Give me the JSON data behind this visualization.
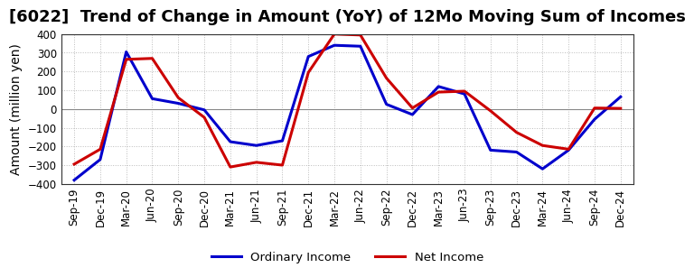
{
  "title": "[6022]  Trend of Change in Amount (YoY) of 12Mo Moving Sum of Incomes",
  "ylabel": "Amount (million yen)",
  "ylim": [
    -400,
    400
  ],
  "yticks": [
    -400,
    -300,
    -200,
    -100,
    0,
    100,
    200,
    300,
    400
  ],
  "x_labels": [
    "Sep-19",
    "Dec-19",
    "Mar-20",
    "Jun-20",
    "Sep-20",
    "Dec-20",
    "Mar-21",
    "Jun-21",
    "Sep-21",
    "Dec-21",
    "Mar-22",
    "Jun-22",
    "Sep-22",
    "Dec-22",
    "Mar-23",
    "Jun-23",
    "Sep-23",
    "Dec-23",
    "Mar-24",
    "Jun-24",
    "Sep-24",
    "Dec-24"
  ],
  "ordinary_income": [
    -380,
    -270,
    305,
    55,
    30,
    -5,
    -175,
    -195,
    -170,
    280,
    340,
    335,
    25,
    -30,
    120,
    80,
    -220,
    -230,
    -320,
    -220,
    -55,
    65
  ],
  "net_income": [
    -295,
    -215,
    265,
    270,
    60,
    -45,
    -310,
    -285,
    -300,
    195,
    400,
    395,
    165,
    5,
    90,
    95,
    -10,
    -125,
    -195,
    -215,
    5,
    3
  ],
  "ordinary_income_color": "#0000CC",
  "net_income_color": "#CC0000",
  "grid_color": "#AAAAAA",
  "background_color": "#FFFFFF",
  "plot_background": "#FFFFFF",
  "legend_labels": [
    "Ordinary Income",
    "Net Income"
  ],
  "line_width": 2.2,
  "title_fontsize": 13,
  "tick_fontsize": 8.5,
  "ylabel_fontsize": 10
}
